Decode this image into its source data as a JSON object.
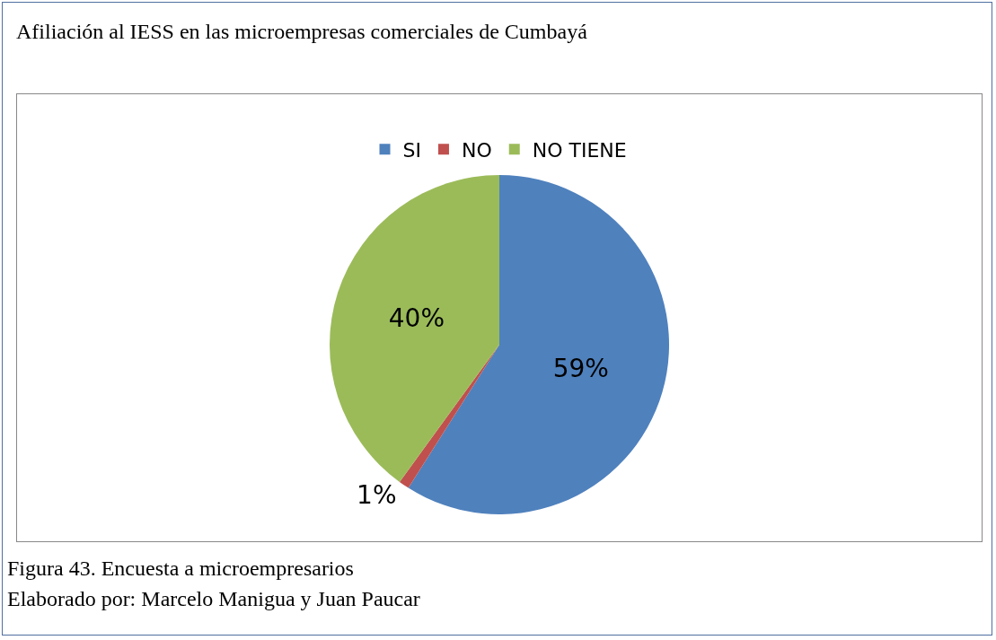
{
  "chart_data": {
    "type": "pie",
    "title": "Afiliación al IESS en las microempresas comerciales de Cumbayá",
    "categories": [
      "SI",
      "NO",
      "NO TIENE"
    ],
    "values": [
      59,
      1,
      40
    ],
    "colors": [
      "#4f81bd",
      "#c0504d",
      "#9bbb59"
    ],
    "value_labels": [
      "59%",
      "1%",
      "40%"
    ],
    "legend": "top",
    "annotations": [
      "Figura 43. Encuesta a microempresarios",
      "Elaborado por: Marcelo Manigua y Juan Paucar"
    ]
  }
}
